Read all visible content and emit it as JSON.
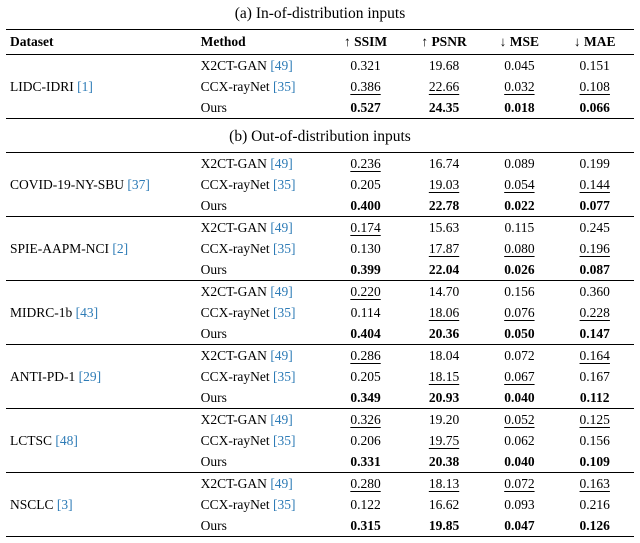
{
  "page": {
    "background": "#ffffff",
    "text_color": "#000000",
    "citation_color": "#2d7bb6"
  },
  "header": {
    "columns": [
      "Dataset",
      "Method",
      "↑ SSIM",
      "↑ PSNR",
      "↓ MSE",
      "↓ MAE"
    ]
  },
  "sections": [
    {
      "id": "a",
      "title": "(a) In-of-distribution inputs",
      "groups": [
        {
          "dataset": "LIDC-IDRI",
          "cite": "[1]",
          "rows": [
            {
              "method": "X2CT-GAN",
              "cite": "[49]",
              "values": [
                {
                  "text": "0.321",
                  "emph": "plain"
                },
                {
                  "text": "19.68",
                  "emph": "plain"
                },
                {
                  "text": "0.045",
                  "emph": "plain"
                },
                {
                  "text": "0.151",
                  "emph": "plain"
                }
              ]
            },
            {
              "method": "CCX-rayNet",
              "cite": "[35]",
              "values": [
                {
                  "text": "0.386",
                  "emph": "underline"
                },
                {
                  "text": "22.66",
                  "emph": "underline"
                },
                {
                  "text": "0.032",
                  "emph": "underline"
                },
                {
                  "text": "0.108",
                  "emph": "underline"
                }
              ]
            },
            {
              "method": "Ours",
              "cite": "",
              "values": [
                {
                  "text": "0.527",
                  "emph": "bold"
                },
                {
                  "text": "24.35",
                  "emph": "bold"
                },
                {
                  "text": "0.018",
                  "emph": "bold"
                },
                {
                  "text": "0.066",
                  "emph": "bold"
                }
              ]
            }
          ]
        }
      ]
    },
    {
      "id": "b",
      "title": "(b) Out-of-distribution inputs",
      "groups": [
        {
          "dataset": "COVID-19-NY-SBU",
          "cite": "[37]",
          "rows": [
            {
              "method": "X2CT-GAN",
              "cite": "[49]",
              "values": [
                {
                  "text": "0.236",
                  "emph": "underline"
                },
                {
                  "text": "16.74",
                  "emph": "plain"
                },
                {
                  "text": "0.089",
                  "emph": "plain"
                },
                {
                  "text": "0.199",
                  "emph": "plain"
                }
              ]
            },
            {
              "method": "CCX-rayNet",
              "cite": "[35]",
              "values": [
                {
                  "text": "0.205",
                  "emph": "plain"
                },
                {
                  "text": "19.03",
                  "emph": "underline"
                },
                {
                  "text": "0.054",
                  "emph": "underline"
                },
                {
                  "text": "0.144",
                  "emph": "underline"
                }
              ]
            },
            {
              "method": "Ours",
              "cite": "",
              "values": [
                {
                  "text": "0.400",
                  "emph": "bold"
                },
                {
                  "text": "22.78",
                  "emph": "bold"
                },
                {
                  "text": "0.022",
                  "emph": "bold"
                },
                {
                  "text": "0.077",
                  "emph": "bold"
                }
              ]
            }
          ]
        },
        {
          "dataset": "SPIE-AAPM-NCI",
          "cite": "[2]",
          "rows": [
            {
              "method": "X2CT-GAN",
              "cite": "[49]",
              "values": [
                {
                  "text": "0.174",
                  "emph": "underline"
                },
                {
                  "text": "15.63",
                  "emph": "plain"
                },
                {
                  "text": "0.115",
                  "emph": "plain"
                },
                {
                  "text": "0.245",
                  "emph": "plain"
                }
              ]
            },
            {
              "method": "CCX-rayNet",
              "cite": "[35]",
              "values": [
                {
                  "text": "0.130",
                  "emph": "plain"
                },
                {
                  "text": "17.87",
                  "emph": "underline"
                },
                {
                  "text": "0.080",
                  "emph": "underline"
                },
                {
                  "text": "0.196",
                  "emph": "underline"
                }
              ]
            },
            {
              "method": "Ours",
              "cite": "",
              "values": [
                {
                  "text": "0.399",
                  "emph": "bold"
                },
                {
                  "text": "22.04",
                  "emph": "bold"
                },
                {
                  "text": "0.026",
                  "emph": "bold"
                },
                {
                  "text": "0.087",
                  "emph": "bold"
                }
              ]
            }
          ]
        },
        {
          "dataset": "MIDRC-1b",
          "cite": "[43]",
          "rows": [
            {
              "method": "X2CT-GAN",
              "cite": "[49]",
              "values": [
                {
                  "text": "0.220",
                  "emph": "underline"
                },
                {
                  "text": "14.70",
                  "emph": "plain"
                },
                {
                  "text": "0.156",
                  "emph": "plain"
                },
                {
                  "text": "0.360",
                  "emph": "plain"
                }
              ]
            },
            {
              "method": "CCX-rayNet",
              "cite": "[35]",
              "values": [
                {
                  "text": "0.114",
                  "emph": "plain"
                },
                {
                  "text": "18.06",
                  "emph": "underline"
                },
                {
                  "text": "0.076",
                  "emph": "underline"
                },
                {
                  "text": "0.228",
                  "emph": "underline"
                }
              ]
            },
            {
              "method": "Ours",
              "cite": "",
              "values": [
                {
                  "text": "0.404",
                  "emph": "bold"
                },
                {
                  "text": "20.36",
                  "emph": "bold"
                },
                {
                  "text": "0.050",
                  "emph": "bold"
                },
                {
                  "text": "0.147",
                  "emph": "bold"
                }
              ]
            }
          ]
        },
        {
          "dataset": "ANTI-PD-1",
          "cite": "[29]",
          "rows": [
            {
              "method": "X2CT-GAN",
              "cite": "[49]",
              "values": [
                {
                  "text": "0.286",
                  "emph": "underline"
                },
                {
                  "text": "18.04",
                  "emph": "plain"
                },
                {
                  "text": "0.072",
                  "emph": "plain"
                },
                {
                  "text": "0.164",
                  "emph": "underline"
                }
              ]
            },
            {
              "method": "CCX-rayNet",
              "cite": "[35]",
              "values": [
                {
                  "text": "0.205",
                  "emph": "plain"
                },
                {
                  "text": "18.15",
                  "emph": "underline"
                },
                {
                  "text": "0.067",
                  "emph": "underline"
                },
                {
                  "text": "0.167",
                  "emph": "plain"
                }
              ]
            },
            {
              "method": "Ours",
              "cite": "",
              "values": [
                {
                  "text": "0.349",
                  "emph": "bold"
                },
                {
                  "text": "20.93",
                  "emph": "bold"
                },
                {
                  "text": "0.040",
                  "emph": "bold"
                },
                {
                  "text": "0.112",
                  "emph": "bold"
                }
              ]
            }
          ]
        },
        {
          "dataset": "LCTSC",
          "cite": "[48]",
          "rows": [
            {
              "method": "X2CT-GAN",
              "cite": "[49]",
              "values": [
                {
                  "text": "0.326",
                  "emph": "underline"
                },
                {
                  "text": "19.20",
                  "emph": "plain"
                },
                {
                  "text": "0.052",
                  "emph": "underline"
                },
                {
                  "text": "0.125",
                  "emph": "underline"
                }
              ]
            },
            {
              "method": "CCX-rayNet",
              "cite": "[35]",
              "values": [
                {
                  "text": "0.206",
                  "emph": "plain"
                },
                {
                  "text": "19.75",
                  "emph": "underline"
                },
                {
                  "text": "0.062",
                  "emph": "plain"
                },
                {
                  "text": "0.156",
                  "emph": "plain"
                }
              ]
            },
            {
              "method": "Ours",
              "cite": "",
              "values": [
                {
                  "text": "0.331",
                  "emph": "bold"
                },
                {
                  "text": "20.38",
                  "emph": "bold"
                },
                {
                  "text": "0.040",
                  "emph": "bold"
                },
                {
                  "text": "0.109",
                  "emph": "bold"
                }
              ]
            }
          ]
        },
        {
          "dataset": "NSCLC",
          "cite": "[3]",
          "rows": [
            {
              "method": "X2CT-GAN",
              "cite": "[49]",
              "values": [
                {
                  "text": "0.280",
                  "emph": "underline"
                },
                {
                  "text": "18.13",
                  "emph": "underline"
                },
                {
                  "text": "0.072",
                  "emph": "underline"
                },
                {
                  "text": "0.163",
                  "emph": "underline"
                }
              ]
            },
            {
              "method": "CCX-rayNet",
              "cite": "[35]",
              "values": [
                {
                  "text": "0.122",
                  "emph": "plain"
                },
                {
                  "text": "16.62",
                  "emph": "plain"
                },
                {
                  "text": "0.093",
                  "emph": "plain"
                },
                {
                  "text": "0.216",
                  "emph": "plain"
                }
              ]
            },
            {
              "method": "Ours",
              "cite": "",
              "values": [
                {
                  "text": "0.315",
                  "emph": "bold"
                },
                {
                  "text": "19.85",
                  "emph": "bold"
                },
                {
                  "text": "0.047",
                  "emph": "bold"
                },
                {
                  "text": "0.126",
                  "emph": "bold"
                }
              ]
            }
          ]
        }
      ]
    }
  ]
}
